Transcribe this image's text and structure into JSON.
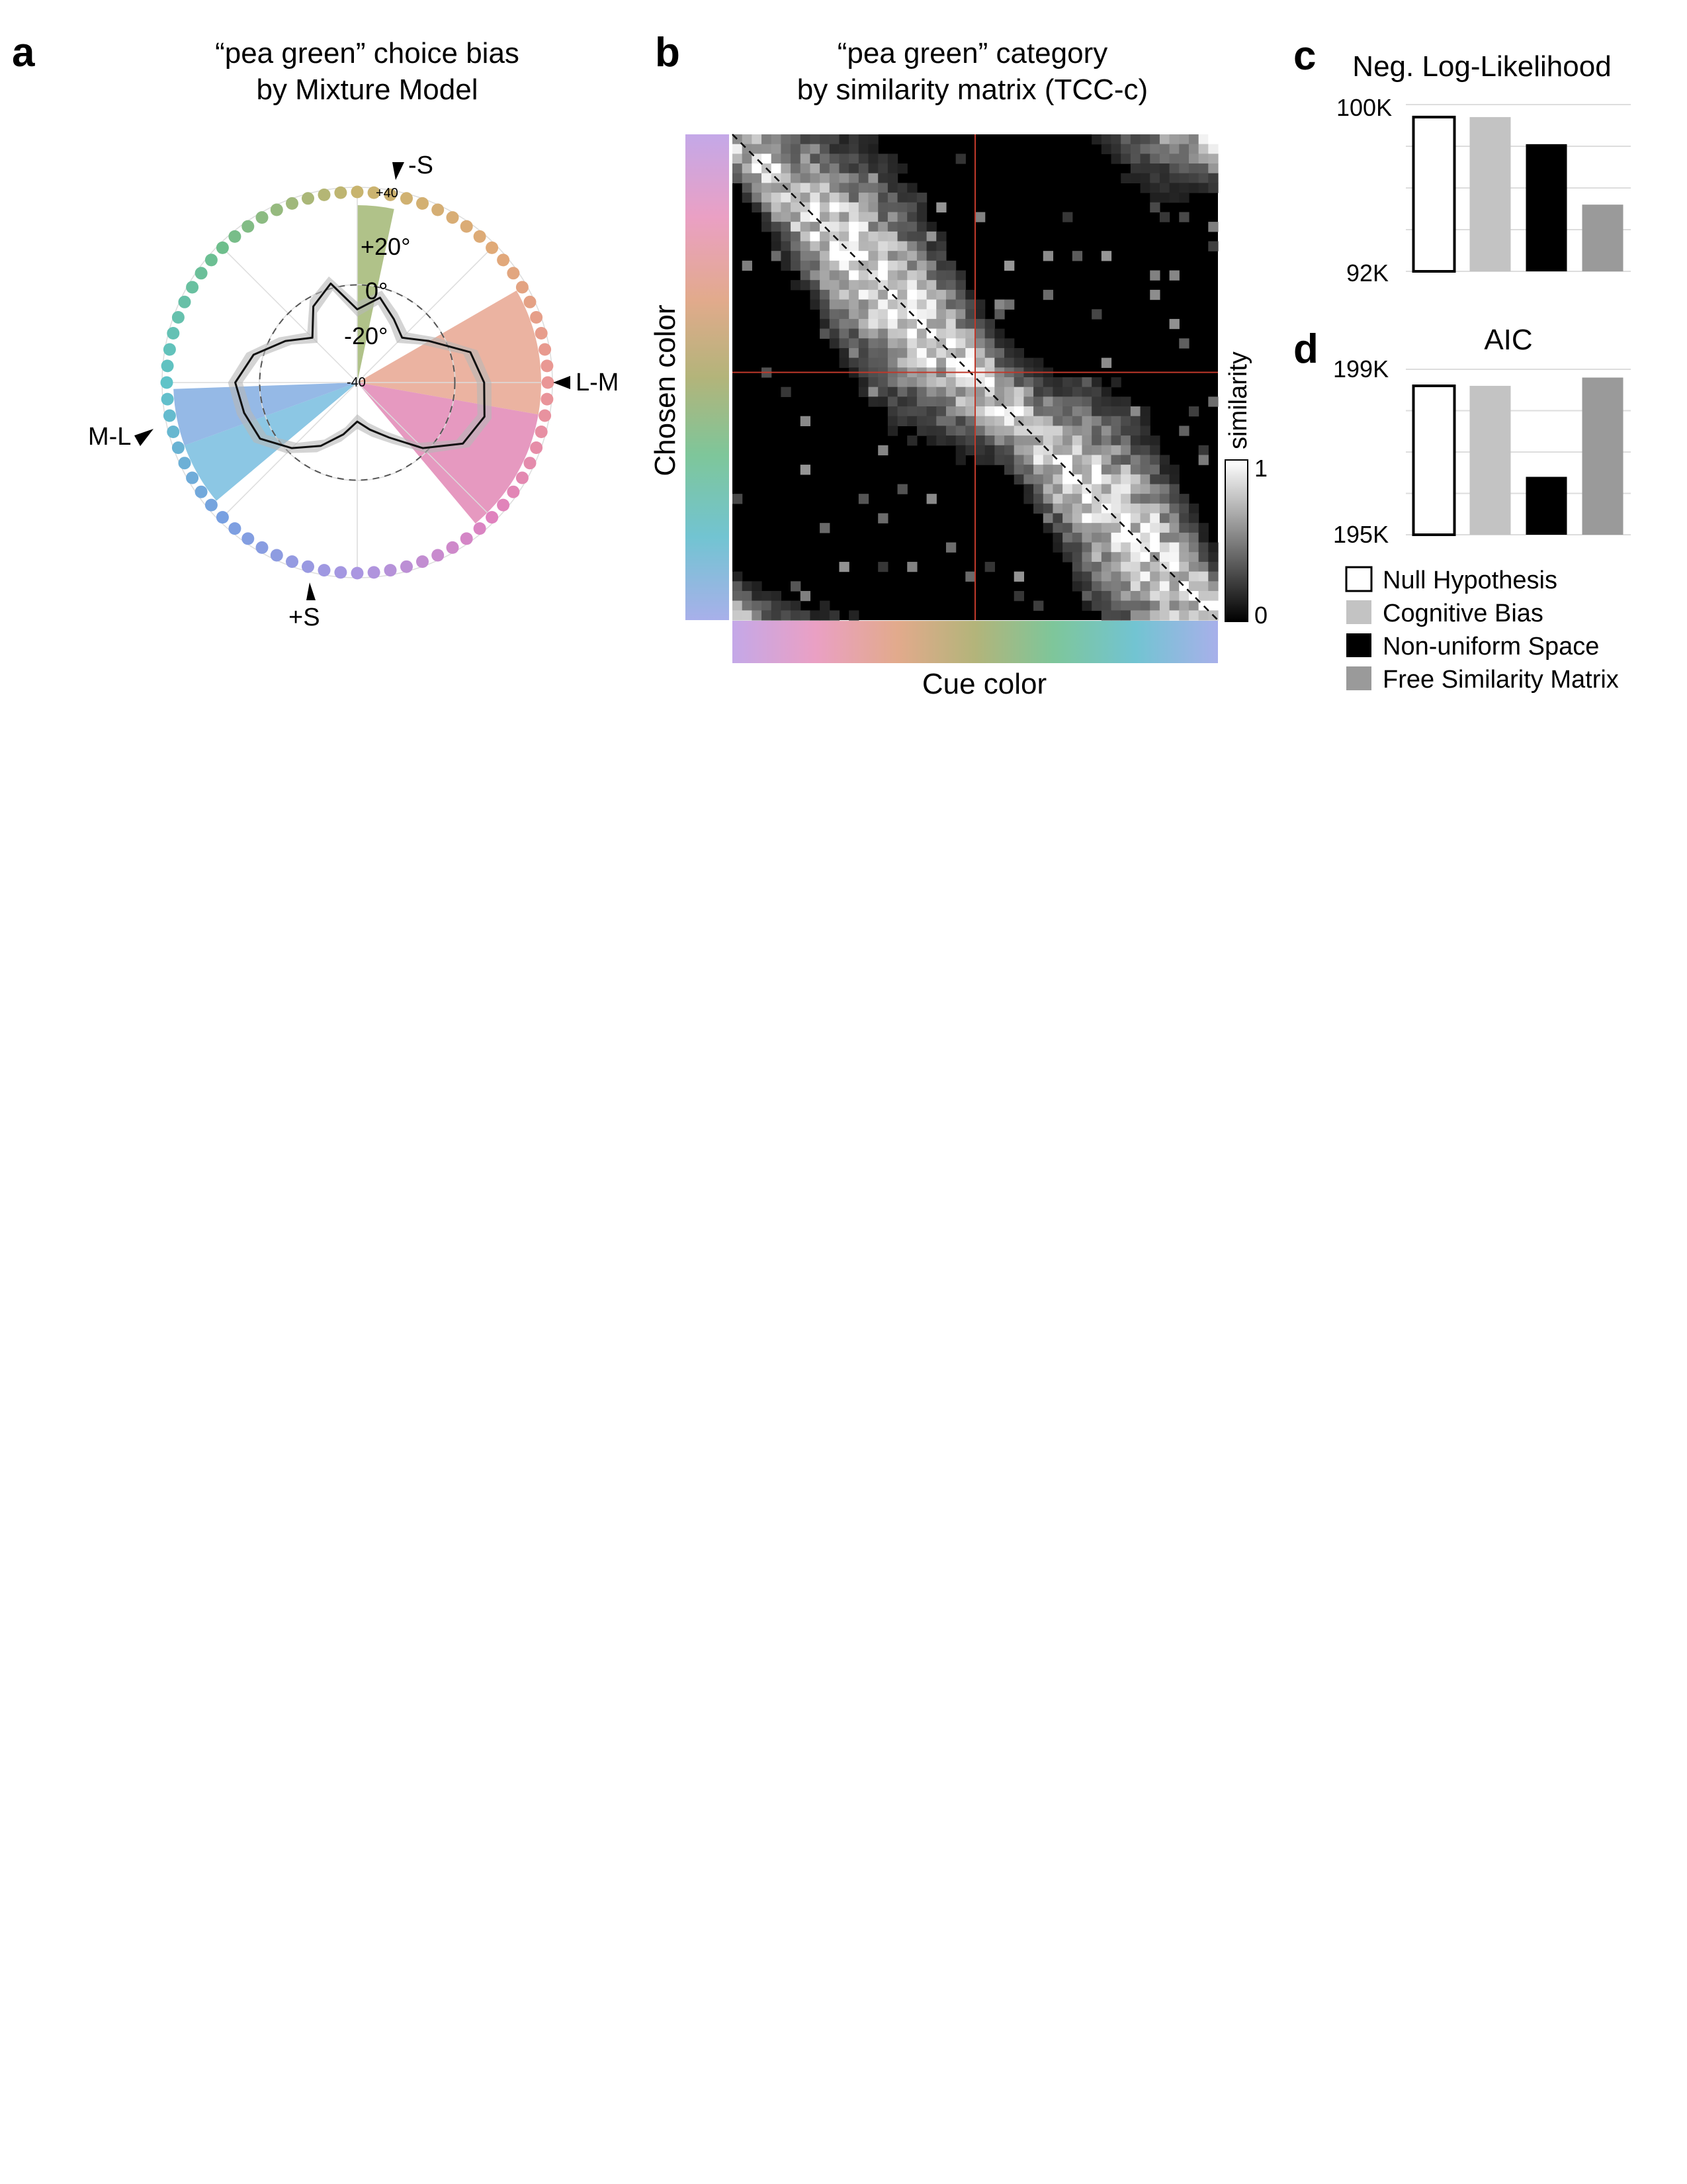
{
  "panels": {
    "a": {
      "letter": "a",
      "title_line1": "“pea green” choice bias",
      "title_line2": "by Mixture Model"
    },
    "b": {
      "letter": "b",
      "title_line1": "“pea green” category",
      "title_line2": "by similarity matrix (TCC-c)"
    },
    "c": {
      "letter": "c"
    },
    "d": {
      "letter": "d"
    }
  },
  "chart_data": [
    {
      "id": "a",
      "type": "polar",
      "title": "“pea green” choice bias by Mixture Model",
      "radial_ticks": [
        "+40",
        "+20°",
        "0°",
        "-20°",
        "-40"
      ],
      "rlim": [
        -40,
        40
      ],
      "direction_labels": [
        "-S",
        "L-M",
        "+S",
        "M-L"
      ],
      "ring_hue_dots": 72,
      "highlight_sectors": [
        {
          "start_deg": 0,
          "end_deg": 12,
          "color": "#9cb36c"
        },
        {
          "start_deg": 60,
          "end_deg": 100,
          "color": "#e6a08a"
        },
        {
          "start_deg": 100,
          "end_deg": 140,
          "color": "#e07fb0"
        },
        {
          "start_deg": 230,
          "end_deg": 250,
          "color": "#6fb9dd"
        },
        {
          "start_deg": 250,
          "end_deg": 268,
          "color": "#7aa7e0"
        }
      ],
      "bias_curve_deg": [
        0,
        15,
        30,
        45,
        60,
        75,
        90,
        105,
        120,
        135,
        150,
        165,
        180,
        195,
        210,
        225,
        240,
        255,
        270,
        285,
        300,
        315,
        330,
        345
      ],
      "bias_curve_value": [
        -10,
        -4,
        -10,
        -14,
        -6,
        8,
        12,
        14,
        10,
        -2,
        -14,
        -20,
        -24,
        -18,
        -10,
        -2,
        6,
        8,
        10,
        4,
        -6,
        -14,
        -4,
        2
      ]
    },
    {
      "id": "b",
      "type": "heatmap",
      "title": "“pea green” category by similarity matrix (TCC-c)",
      "xlabel": "Cue color",
      "ylabel": "Chosen color",
      "colorbar_label": "similarity",
      "colorbar_range": [
        0,
        1
      ],
      "colorbar_ticks": [
        "0",
        "1"
      ],
      "grid_size": 50,
      "category_index": 25,
      "category_line_color": "#c0392b"
    },
    {
      "id": "c",
      "type": "bar",
      "title": "Neg. Log-Likelihood",
      "ylim": [
        92000,
        100000
      ],
      "ytick_labels": [
        "92K",
        "100K"
      ],
      "categories": [
        "Null Hypothesis",
        "Cognitive Bias",
        "Non-uniform Space",
        "Free Similarity Matrix"
      ],
      "values": [
        99400,
        99400,
        98100,
        95200
      ],
      "colors": [
        "#ffffff",
        "#c3c3c3",
        "#000000",
        "#9a9a9a"
      ]
    },
    {
      "id": "d",
      "type": "bar",
      "title": "AIC",
      "ylim": [
        195000,
        199000
      ],
      "ytick_labels": [
        "195K",
        "199K"
      ],
      "categories": [
        "Null Hypothesis",
        "Cognitive Bias",
        "Non-uniform Space",
        "Free Similarity Matrix"
      ],
      "values": [
        198600,
        198600,
        196400,
        198800
      ],
      "colors": [
        "#ffffff",
        "#c3c3c3",
        "#000000",
        "#9a9a9a"
      ]
    }
  ],
  "legend": [
    {
      "label": "Null Hypothesis",
      "color": "#ffffff"
    },
    {
      "label": "Cognitive Bias",
      "color": "#c3c3c3"
    },
    {
      "label": "Non-uniform Space",
      "color": "#000000"
    },
    {
      "label": "Free Similarity Matrix",
      "color": "#9a9a9a"
    }
  ]
}
